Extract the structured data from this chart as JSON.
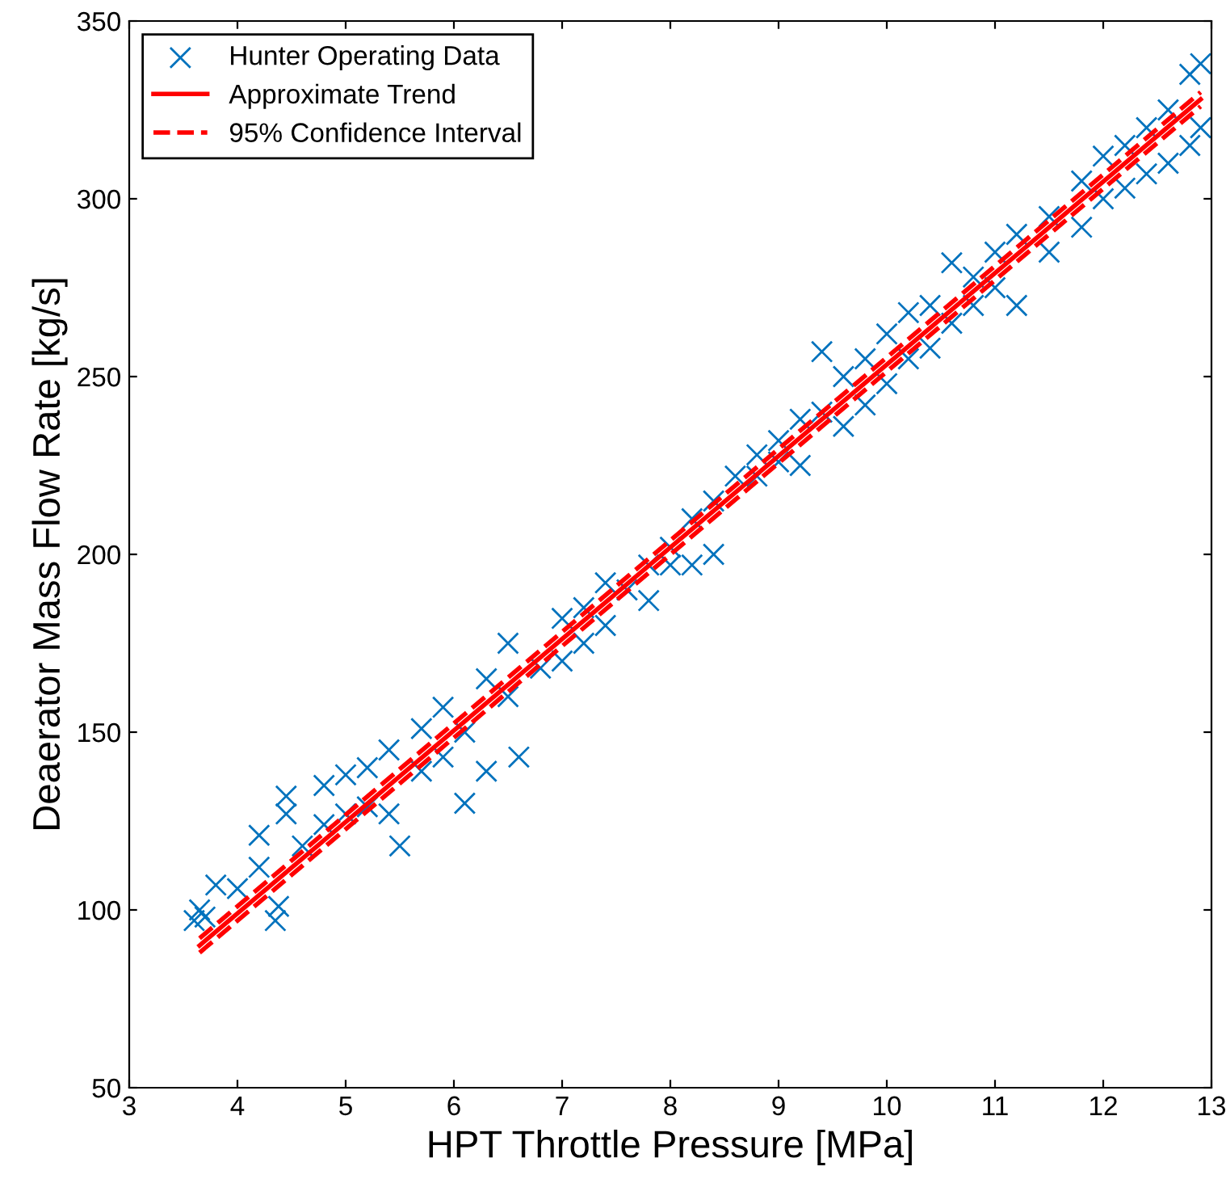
{
  "chart_data": {
    "type": "scatter",
    "xlabel": "HPT Throttle Pressure [MPa]",
    "ylabel": "Deaerator Mass Flow Rate [kg/s]",
    "xlim": [
      3,
      13
    ],
    "xticks": [
      3,
      4,
      5,
      6,
      7,
      8,
      9,
      10,
      11,
      12,
      13
    ],
    "ylim": [
      50,
      350
    ],
    "yticks": [
      50,
      100,
      150,
      200,
      250,
      300,
      350
    ],
    "grid": false,
    "legend": "top left",
    "series": [
      {
        "name": "Hunter Operating Data",
        "marker": "cross",
        "color": "#0072bd",
        "x": [
          3.6,
          3.65,
          3.7,
          3.8,
          4.0,
          4.2,
          4.2,
          4.35,
          4.38,
          4.45,
          4.45,
          4.6,
          4.8,
          4.8,
          5.0,
          5.0,
          5.2,
          5.2,
          5.4,
          5.4,
          5.5,
          5.7,
          5.7,
          5.9,
          5.9,
          6.1,
          6.1,
          6.3,
          6.3,
          6.5,
          6.5,
          6.6,
          6.8,
          7.0,
          7.0,
          7.2,
          7.2,
          7.4,
          7.4,
          7.6,
          7.8,
          7.8,
          8.0,
          8.0,
          8.2,
          8.2,
          8.4,
          8.4,
          8.6,
          8.8,
          8.8,
          9.0,
          9.0,
          9.2,
          9.2,
          9.4,
          9.4,
          9.6,
          9.6,
          9.8,
          9.8,
          10.0,
          10.0,
          10.2,
          10.2,
          10.4,
          10.4,
          10.6,
          10.6,
          10.8,
          10.8,
          11.0,
          11.0,
          11.2,
          11.2,
          11.5,
          11.5,
          11.8,
          11.8,
          12.0,
          12.0,
          12.2,
          12.2,
          12.4,
          12.4,
          12.6,
          12.6,
          12.8,
          12.8,
          12.9,
          12.9
        ],
        "values": [
          97,
          100,
          98,
          107,
          106,
          121,
          112,
          97,
          101,
          132,
          127,
          118,
          135,
          124,
          138,
          127,
          129,
          140,
          145,
          127,
          118,
          151,
          139,
          157,
          143,
          130,
          150,
          165,
          139,
          175,
          160,
          143,
          168,
          182,
          170,
          175,
          185,
          192,
          180,
          190,
          187,
          197,
          202,
          197,
          197,
          210,
          200,
          215,
          222,
          228,
          222,
          232,
          226,
          238,
          225,
          257,
          240,
          250,
          236,
          255,
          242,
          248,
          262,
          268,
          255,
          270,
          258,
          282,
          265,
          278,
          270,
          285,
          275,
          270,
          290,
          295,
          285,
          305,
          292,
          312,
          300,
          315,
          303,
          320,
          307,
          325,
          310,
          335,
          315,
          338,
          320
        ]
      },
      {
        "name": "Approximate Trend",
        "type": "line",
        "line_style": "solid",
        "color": "#ff0000",
        "x": [
          3.65,
          12.9
        ],
        "values": [
          90,
          328
        ]
      },
      {
        "name": "95% Confidence Interval",
        "type": "line",
        "line_style": "dashed",
        "color": "#ff0000",
        "x": [
          3.65,
          12.9
        ],
        "values": [
          88,
          326
        ]
      },
      {
        "type": "line",
        "line_style": "dashed",
        "color": "#ff0000",
        "x": [
          3.65,
          12.9
        ],
        "values": [
          92,
          330
        ]
      }
    ]
  }
}
